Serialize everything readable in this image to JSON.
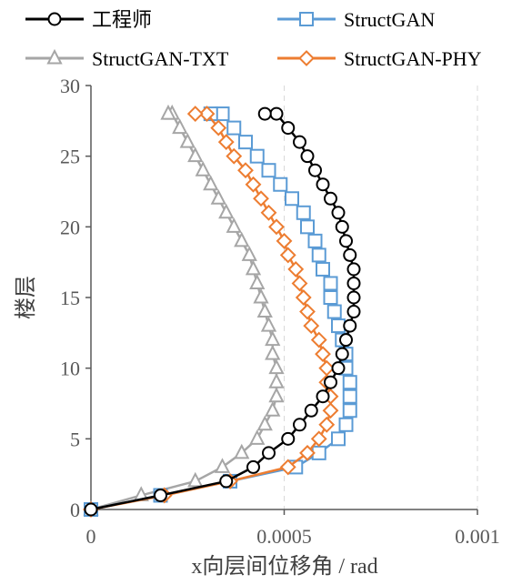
{
  "chart_data": {
    "type": "line",
    "title": "",
    "xlabel": "x向层间位移角 / rad",
    "ylabel": "楼层",
    "xlim": [
      0,
      0.001
    ],
    "ylim": [
      0,
      30
    ],
    "x_ticks": [
      0,
      0.0005,
      0.001
    ],
    "x_tick_labels": [
      "0",
      "0.0005",
      "0.001"
    ],
    "y_ticks": [
      0,
      5,
      10,
      15,
      20,
      25,
      30
    ],
    "y_tick_labels": [
      "0",
      "5",
      "10",
      "15",
      "20",
      "25",
      "30"
    ],
    "grid": "vertical dashed",
    "legend_position": "top",
    "series": [
      {
        "name": "工程师",
        "color": "#000000",
        "marker": "circle",
        "x": [
          0,
          0.00018,
          0.00035,
          0.00042,
          0.00046,
          0.00051,
          0.00054,
          0.00057,
          0.0006,
          0.00062,
          0.00064,
          0.00065,
          0.00066,
          0.00067,
          0.00068,
          0.00068,
          0.00068,
          0.00068,
          0.00067,
          0.00066,
          0.00065,
          0.00064,
          0.00062,
          0.0006,
          0.00058,
          0.00056,
          0.00054,
          0.00051,
          0.00048,
          0.00045
        ],
        "y": [
          0,
          1,
          2,
          3,
          4,
          5,
          6,
          7,
          8,
          9,
          10,
          11,
          12,
          13,
          14,
          15,
          16,
          17,
          18,
          19,
          20,
          21,
          22,
          23,
          24,
          25,
          26,
          27,
          28,
          28
        ]
      },
      {
        "name": "StructGAN",
        "color": "#5B9BD5",
        "marker": "square",
        "x": [
          0,
          0.00018,
          0.00036,
          0.00053,
          0.00059,
          0.00064,
          0.00066,
          0.00067,
          0.00067,
          0.00067,
          0.00066,
          0.00066,
          0.00065,
          0.00064,
          0.00063,
          0.00062,
          0.00062,
          0.0006,
          0.00059,
          0.00058,
          0.00056,
          0.00055,
          0.00052,
          0.00049,
          0.00046,
          0.00043,
          0.0004,
          0.00037,
          0.00034,
          0.00031
        ],
        "y": [
          0,
          1,
          2,
          3,
          4,
          5,
          6,
          7,
          8,
          9,
          10,
          11,
          12,
          13,
          14,
          15,
          16,
          17,
          18,
          19,
          20,
          21,
          22,
          23,
          24,
          25,
          26,
          27,
          28,
          28
        ]
      },
      {
        "name": "StructGAN-TXT",
        "color": "#A6A6A6",
        "marker": "triangle",
        "x": [
          0,
          0.00013,
          0.00027,
          0.00034,
          0.00039,
          0.00043,
          0.00045,
          0.00047,
          0.00048,
          0.00048,
          0.00048,
          0.00047,
          0.00047,
          0.00046,
          0.00045,
          0.00044,
          0.00043,
          0.00042,
          0.00041,
          0.00039,
          0.00037,
          0.00035,
          0.00033,
          0.00031,
          0.00029,
          0.00027,
          0.00025,
          0.00023,
          0.00021,
          0.0002
        ],
        "y": [
          0,
          1,
          2,
          3,
          4,
          5,
          6,
          7,
          8,
          9,
          10,
          11,
          12,
          13,
          14,
          15,
          16,
          17,
          18,
          19,
          20,
          21,
          22,
          23,
          24,
          25,
          26,
          27,
          28,
          28
        ]
      },
      {
        "name": "StructGAN-PHY",
        "color": "#ED7D31",
        "marker": "diamond",
        "x": [
          0,
          0.00019,
          0.00036,
          0.00051,
          0.00056,
          0.00059,
          0.00061,
          0.00062,
          0.00062,
          0.00061,
          0.00061,
          0.0006,
          0.00059,
          0.00057,
          0.00056,
          0.00055,
          0.00054,
          0.00053,
          0.00051,
          0.0005,
          0.00048,
          0.00046,
          0.00044,
          0.00042,
          0.0004,
          0.00037,
          0.00035,
          0.00033,
          0.0003,
          0.00027
        ],
        "y": [
          0,
          1,
          2,
          3,
          4,
          5,
          6,
          7,
          8,
          9,
          10,
          11,
          12,
          13,
          14,
          15,
          16,
          17,
          18,
          19,
          20,
          21,
          22,
          23,
          24,
          25,
          26,
          27,
          28,
          28
        ]
      }
    ]
  }
}
